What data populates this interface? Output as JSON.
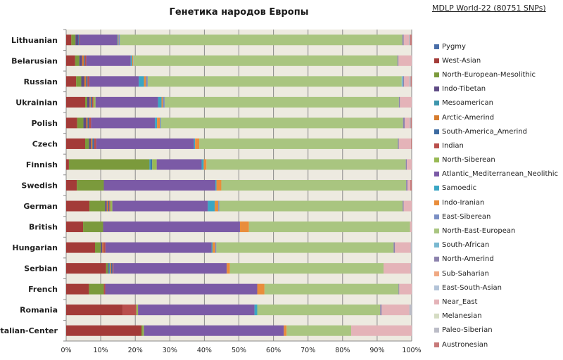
{
  "chart_data": {
    "type": "bar",
    "orientation": "horizontal",
    "stacked": "percent",
    "title": "Генетика народов Европы",
    "subtitle": "MDLP World-22 (80751 SNPs)",
    "xlabel": "",
    "ylabel": "",
    "xlim": [
      0,
      100
    ],
    "x_ticks": [
      "0%",
      "10%",
      "20%",
      "30%",
      "40%",
      "50%",
      "60%",
      "70%",
      "80%",
      "90%",
      "100%"
    ],
    "grid": "vertical",
    "legend_position": "right",
    "categories": [
      "Lithuanian",
      "Belarusian",
      "Russian",
      "Ukrainian",
      "Polish",
      "Czech",
      "Finnish",
      "Swedish",
      "German",
      "British",
      "Hungarian",
      "Serbian",
      "French",
      "Romania",
      "Italian-Center"
    ],
    "series": [
      {
        "name": "Pygmy",
        "color": "#4a6ea8",
        "values": [
          0,
          0,
          0,
          0,
          0,
          0,
          0,
          0,
          0,
          0,
          0,
          0,
          0,
          0,
          0
        ]
      },
      {
        "name": "West-Asian",
        "color": "#a33b38",
        "values": [
          1.5,
          2.6,
          2.9,
          5.5,
          3.2,
          5.5,
          0.8,
          3.1,
          6.7,
          4.9,
          8.3,
          11.5,
          6.6,
          16.3,
          21.8
        ]
      },
      {
        "name": "North-European-Mesolithic",
        "color": "#7b9a3c",
        "values": [
          1.2,
          1.2,
          1.5,
          0.6,
          1.8,
          1.1,
          23.3,
          7.8,
          4.5,
          5.8,
          1.7,
          0.5,
          4.3,
          0,
          0.3
        ]
      },
      {
        "name": "Indo-Tibetan",
        "color": "#5f4b85",
        "values": [
          0.8,
          0.8,
          0.9,
          0.7,
          0.8,
          0.6,
          0,
          0,
          0.5,
          0,
          0.4,
          0.3,
          0,
          0,
          0
        ]
      },
      {
        "name": "Mesoamerican",
        "color": "#3d96ad",
        "values": [
          0,
          0,
          0,
          0,
          0,
          0,
          0.5,
          0,
          0,
          0,
          0,
          0.3,
          0,
          0,
          0
        ]
      },
      {
        "name": "Arctic-Amerind",
        "color": "#d67c2e",
        "values": [
          0,
          0.5,
          0.5,
          0.3,
          0.4,
          0.4,
          0,
          0,
          0.4,
          0,
          0.3,
          0.3,
          0,
          0,
          0
        ]
      },
      {
        "name": "South-America_Amerind",
        "color": "#3c6aa0",
        "values": [
          0.3,
          0.3,
          0.4,
          0.4,
          0.4,
          0.5,
          0.3,
          0,
          0.3,
          0,
          0,
          0.4,
          0,
          0,
          0
        ]
      },
      {
        "name": "Indian",
        "color": "#b94f4c",
        "values": [
          0.2,
          0.4,
          0.5,
          0.4,
          0.6,
          0.6,
          0,
          0,
          0.3,
          0,
          0.6,
          0.3,
          0.4,
          4.0,
          0
        ]
      },
      {
        "name": "North-Siberean",
        "color": "#98b954",
        "values": [
          0,
          0,
          0,
          0.6,
          0,
          0,
          1.3,
          0,
          0.6,
          0,
          0,
          0,
          0,
          0.5,
          0.4
        ]
      },
      {
        "name": "Atlantic_Mediterranean_Neolithic",
        "color": "#7b5aa6",
        "values": [
          10.8,
          12.8,
          14.4,
          18.1,
          18.5,
          28.3,
          13.0,
          32.3,
          27.5,
          39.6,
          30.5,
          32.6,
          44.0,
          33.7,
          40.5
        ]
      },
      {
        "name": "Samoedic",
        "color": "#3aa6c4",
        "values": [
          0.2,
          0.4,
          1.5,
          1.0,
          0.6,
          0.3,
          0.6,
          0.3,
          2.0,
          0,
          0.3,
          0,
          0,
          0.8,
          0
        ]
      },
      {
        "name": "Indo-Iranian",
        "color": "#e98d3c",
        "values": [
          0.2,
          0.3,
          0.6,
          0.4,
          0.8,
          1.2,
          0.8,
          1.4,
          1.0,
          2.6,
          0.8,
          0.9,
          2.1,
          0,
          0.8
        ]
      },
      {
        "name": "East-Siberean",
        "color": "#7b8fc4",
        "values": [
          0.4,
          0.1,
          0.5,
          0.5,
          0.3,
          0,
          0,
          0,
          0.3,
          0,
          0.3,
          0,
          0,
          0,
          0
        ]
      },
      {
        "name": "North-East-European",
        "color": "#a9c580",
        "values": [
          82.0,
          76.0,
          73.8,
          67.8,
          70.1,
          57.5,
          57.7,
          53.5,
          52.8,
          46.6,
          51.0,
          44.2,
          38.8,
          35.6,
          18.7
        ]
      },
      {
        "name": "South-African",
        "color": "#79b8d0",
        "values": [
          0,
          0,
          0.4,
          0,
          0,
          0,
          0,
          0,
          0,
          0,
          0,
          0,
          0,
          0,
          0
        ]
      },
      {
        "name": "North-Amerind",
        "color": "#8c82ad",
        "values": [
          0.4,
          0.3,
          0.3,
          0.3,
          0.5,
          0.3,
          0.3,
          0.4,
          0.3,
          0,
          0.4,
          0,
          0.2,
          0.4,
          0
        ]
      },
      {
        "name": "Sub-Saharian",
        "color": "#f0a983",
        "values": [
          0,
          0,
          0,
          0,
          0,
          0,
          0,
          0,
          0,
          0,
          0,
          0,
          0,
          0,
          0
        ]
      },
      {
        "name": "East-South-Asian",
        "color": "#b3c3d8",
        "values": [
          0,
          0,
          0,
          0,
          0,
          0,
          0,
          0,
          0,
          0,
          0,
          0,
          0,
          0,
          0
        ]
      },
      {
        "name": "Near_East",
        "color": "#e4b3b8",
        "values": [
          1.5,
          3.8,
          1.5,
          3.4,
          1.4,
          3.5,
          1.4,
          0.8,
          2.3,
          0.5,
          4.5,
          7.8,
          3.6,
          8.0,
          17.5
        ]
      },
      {
        "name": "Melanesian",
        "color": "#d5dcc3",
        "values": [
          0,
          0,
          0,
          0,
          0,
          0,
          0,
          0,
          0,
          0,
          0,
          0,
          0,
          0,
          0
        ]
      },
      {
        "name": "Paleo-Siberian",
        "color": "#bbbcc7",
        "values": [
          0.3,
          0,
          0.4,
          0,
          0.3,
          0,
          0,
          0,
          0,
          0,
          0.3,
          0.3,
          0,
          0.7,
          0
        ]
      },
      {
        "name": "Austronesian",
        "color": "#c77979",
        "values": [
          0.5,
          0,
          0.3,
          0,
          0.3,
          0.2,
          0,
          0.4,
          0,
          0,
          0,
          0,
          0,
          0,
          0
        ]
      }
    ]
  }
}
